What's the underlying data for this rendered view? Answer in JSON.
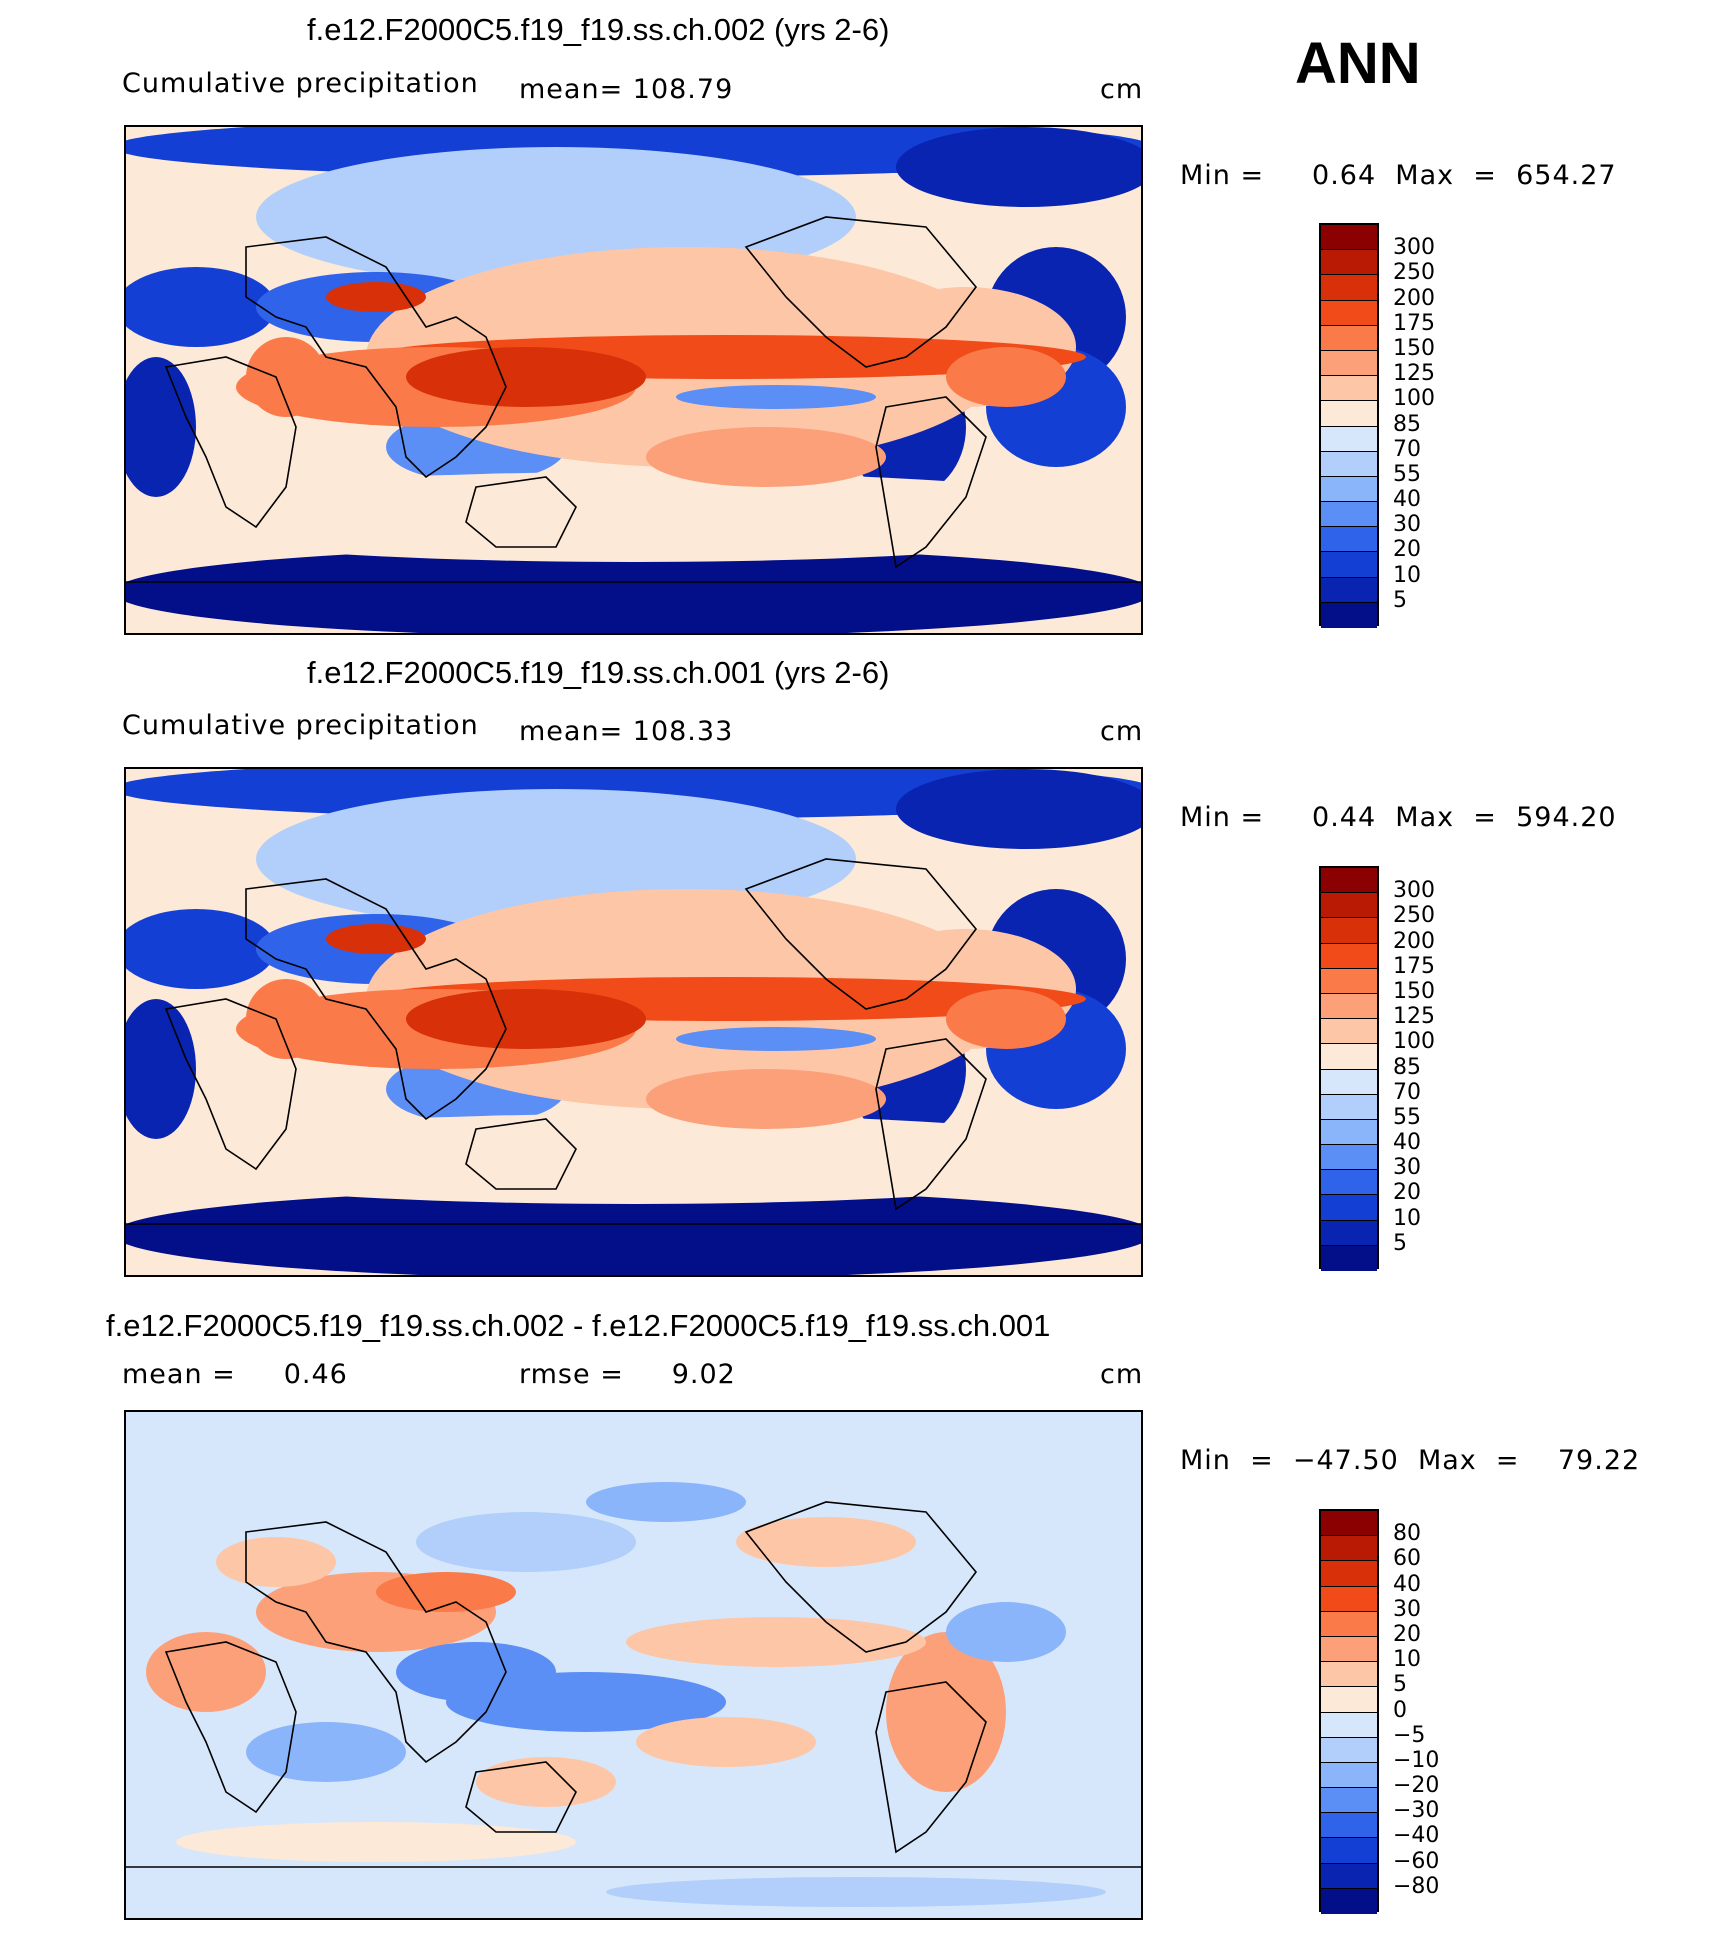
{
  "season": "ANN",
  "panels": [
    {
      "title": "f.e12.F2000C5.f19_f19.ss.ch.002 (yrs 2-6)",
      "left_label": "Cumulative precipitation",
      "center_label": "mean=  108.79",
      "units": "cm",
      "minmax": "Min =     0.64  Max  =  654.27",
      "colorbar_labels": [
        "300",
        "250",
        "200",
        "175",
        "150",
        "125",
        "100",
        "85",
        "70",
        "55",
        "40",
        "30",
        "20",
        "10",
        "5"
      ],
      "colorbar_colors": [
        "#8b0000",
        "#b81a04",
        "#d83008",
        "#f04b18",
        "#fa7a4a",
        "#fca07a",
        "#fdc6a6",
        "#fde9d8",
        "#d7e7fb",
        "#b1cffa",
        "#8ab5fa",
        "#5b8ff5",
        "#2f64ea",
        "#143fd4",
        "#0824b0",
        "#020f88"
      ],
      "map_style": "precip"
    },
    {
      "title": "f.e12.F2000C5.f19_f19.ss.ch.001 (yrs 2-6)",
      "left_label": "Cumulative precipitation",
      "center_label": "mean=  108.33",
      "units": "cm",
      "minmax": "Min =     0.44  Max  =  594.20",
      "colorbar_labels": [
        "300",
        "250",
        "200",
        "175",
        "150",
        "125",
        "100",
        "85",
        "70",
        "55",
        "40",
        "30",
        "20",
        "10",
        "5"
      ],
      "colorbar_colors": [
        "#8b0000",
        "#b81a04",
        "#d83008",
        "#f04b18",
        "#fa7a4a",
        "#fca07a",
        "#fdc6a6",
        "#fde9d8",
        "#d7e7fb",
        "#b1cffa",
        "#8ab5fa",
        "#5b8ff5",
        "#2f64ea",
        "#143fd4",
        "#0824b0",
        "#020f88"
      ],
      "map_style": "precip"
    },
    {
      "title": "f.e12.F2000C5.f19_f19.ss.ch.002 - f.e12.F2000C5.f19_f19.ss.ch.001",
      "left_label": "mean =     0.46",
      "center_label": "rmse =     9.02",
      "units": "cm",
      "minmax": "Min  =  −47.50  Max  =    79.22",
      "colorbar_labels": [
        "80",
        "60",
        "40",
        "30",
        "20",
        "10",
        "5",
        "0",
        "−5",
        "−10",
        "−20",
        "−30",
        "−40",
        "−60",
        "−80"
      ],
      "colorbar_colors": [
        "#8b0000",
        "#b81a04",
        "#d83008",
        "#f04b18",
        "#fa7a4a",
        "#fca07a",
        "#fdc6a6",
        "#fde9d8",
        "#d7e7fb",
        "#b1cffa",
        "#8ab5fa",
        "#5b8ff5",
        "#2f64ea",
        "#143fd4",
        "#0824b0",
        "#020f88"
      ],
      "map_style": "diff"
    }
  ]
}
